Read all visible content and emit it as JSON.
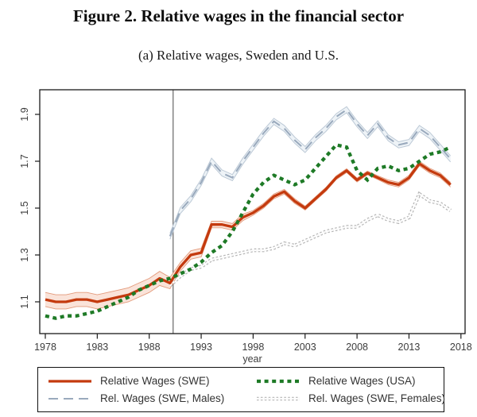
{
  "header": {
    "title": "Figure 2. Relative wages in the financial sector",
    "subtitle": "(a) Relative wages, Sweden and U.S."
  },
  "chart_data": {
    "type": "line",
    "title": "Figure 2. Relative wages in the financial sector",
    "subtitle": "(a) Relative wages, Sweden and U.S.",
    "xlabel": "year",
    "ylabel": "",
    "x_ticks": [
      1978,
      1983,
      1988,
      1993,
      1998,
      2003,
      2008,
      2013,
      2018
    ],
    "y_ticks": [
      1.1,
      1.3,
      1.5,
      1.7,
      1.9
    ],
    "xlim": [
      1977.5,
      2018.4
    ],
    "ylim": [
      0.96,
      2.0
    ],
    "grid": false,
    "legend_position": "bottom-box",
    "reference_line_x": 1990.3,
    "series": [
      {
        "name": "Relative Wages (SWE)",
        "key": "swe",
        "color": "#c43a0e",
        "line": "solid",
        "width": 3.3,
        "band_fill": "#fae3d9",
        "band_edge": "#e39a7b",
        "x": [
          1978,
          1979,
          1980,
          1981,
          1982,
          1983,
          1984,
          1985,
          1986,
          1987,
          1988,
          1989,
          1990,
          1991,
          1992,
          1993,
          1994,
          1995,
          1996,
          1997,
          1998,
          1999,
          2000,
          2001,
          2002,
          2003,
          2004,
          2005,
          2006,
          2007,
          2008,
          2009,
          2010,
          2011,
          2012,
          2013,
          2014,
          2015,
          2016,
          2017
        ],
        "y": [
          1.11,
          1.1,
          1.1,
          1.11,
          1.11,
          1.1,
          1.11,
          1.12,
          1.13,
          1.15,
          1.17,
          1.2,
          1.18,
          1.25,
          1.3,
          1.31,
          1.43,
          1.43,
          1.42,
          1.46,
          1.48,
          1.51,
          1.55,
          1.57,
          1.53,
          1.5,
          1.54,
          1.58,
          1.63,
          1.66,
          1.62,
          1.65,
          1.63,
          1.61,
          1.6,
          1.63,
          1.69,
          1.66,
          1.64,
          1.6
        ],
        "se": [
          0.03,
          0.03,
          0.03,
          0.03,
          0.03,
          0.03,
          0.03,
          0.03,
          0.03,
          0.03,
          0.03,
          0.03,
          0.024,
          0.018,
          0.018,
          0.018,
          0.014,
          0.014,
          0.014,
          0.014,
          0.01,
          0.01,
          0.01,
          0.01,
          0.01,
          0.008,
          0.008,
          0.008,
          0.008,
          0.008,
          0.008,
          0.008,
          0.008,
          0.01,
          0.01,
          0.01,
          0.01,
          0.01,
          0.01,
          0.01
        ]
      },
      {
        "name": "Relative Wages (USA)",
        "key": "usa",
        "color": "#1e7a26",
        "line": "thick-dot",
        "width": 4.3,
        "x": [
          1978,
          1979,
          1980,
          1981,
          1982,
          1983,
          1984,
          1985,
          1986,
          1987,
          1988,
          1989,
          1990,
          1991,
          1992,
          1993,
          1994,
          1995,
          1996,
          1997,
          1998,
          1999,
          2000,
          2001,
          2002,
          2003,
          2004,
          2005,
          2006,
          2007,
          2008,
          2009,
          2010,
          2011,
          2012,
          2013,
          2014,
          2015,
          2016,
          2017
        ],
        "y": [
          1.04,
          1.03,
          1.04,
          1.04,
          1.05,
          1.06,
          1.08,
          1.1,
          1.12,
          1.15,
          1.17,
          1.19,
          1.2,
          1.22,
          1.24,
          1.27,
          1.31,
          1.34,
          1.4,
          1.48,
          1.56,
          1.61,
          1.64,
          1.62,
          1.6,
          1.62,
          1.67,
          1.72,
          1.77,
          1.76,
          1.66,
          1.62,
          1.67,
          1.68,
          1.66,
          1.67,
          1.7,
          1.73,
          1.74,
          1.76
        ]
      },
      {
        "name": "Rel. Wages (SWE, Males)",
        "key": "males",
        "color": "#9aaabd",
        "line": "long-dash",
        "width": 2.1,
        "band_halfwidth": 0.013,
        "band_fill": "#eef3f7",
        "band_edge": "#bcc9d6",
        "x": [
          1990,
          1991,
          1992,
          1993,
          1994,
          1995,
          1996,
          1997,
          1998,
          1999,
          2000,
          2001,
          2002,
          2003,
          2004,
          2005,
          2006,
          2007,
          2008,
          2009,
          2010,
          2011,
          2012,
          2013,
          2014,
          2015,
          2016,
          2017
        ],
        "y": [
          1.38,
          1.49,
          1.54,
          1.61,
          1.7,
          1.65,
          1.63,
          1.7,
          1.76,
          1.82,
          1.87,
          1.84,
          1.79,
          1.75,
          1.8,
          1.84,
          1.89,
          1.92,
          1.86,
          1.81,
          1.86,
          1.8,
          1.77,
          1.78,
          1.84,
          1.81,
          1.76,
          1.71
        ]
      },
      {
        "name": "Rel. Wages (SWE, Females)",
        "key": "females",
        "color": "#b5b5b5",
        "line": "rope-dot",
        "width": 4.6,
        "x": [
          1990,
          1991,
          1992,
          1993,
          1994,
          1995,
          1996,
          1997,
          1998,
          1999,
          2000,
          2001,
          2002,
          2003,
          2004,
          2005,
          2006,
          2007,
          2008,
          2009,
          2010,
          2011,
          2012,
          2013,
          2014,
          2015,
          2016,
          2017
        ],
        "y": [
          1.17,
          1.21,
          1.24,
          1.25,
          1.28,
          1.29,
          1.3,
          1.31,
          1.32,
          1.32,
          1.33,
          1.35,
          1.34,
          1.36,
          1.38,
          1.4,
          1.41,
          1.42,
          1.42,
          1.45,
          1.47,
          1.45,
          1.44,
          1.46,
          1.56,
          1.53,
          1.52,
          1.49
        ]
      }
    ]
  },
  "colors": {
    "axis": "#1a1a1a",
    "tick_text": "#3c3c3c",
    "reference_line": "#666666",
    "legend_border": "#111111",
    "legend_text": "#333333"
  }
}
